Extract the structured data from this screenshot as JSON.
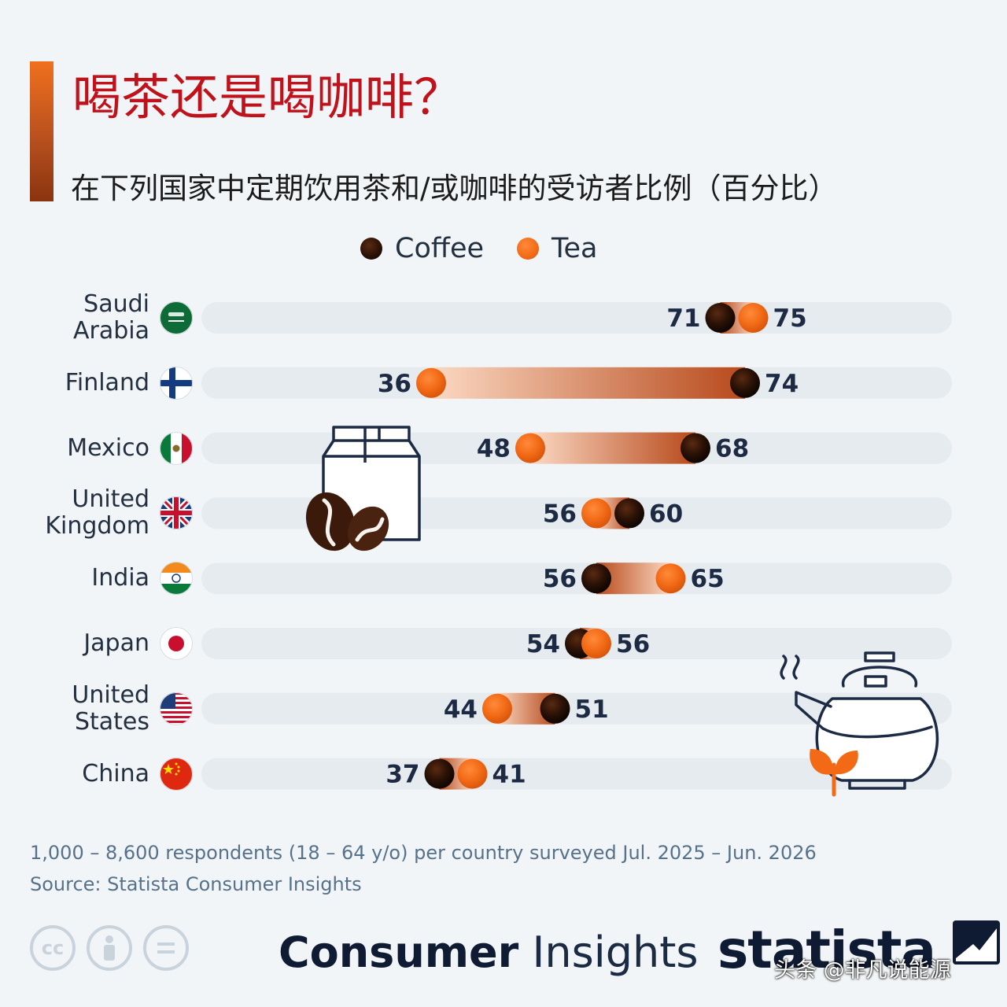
{
  "title": "喝茶还是喝咖啡？",
  "subtitle": "在下列国家中定期饮用茶和/或咖啡的受访者比例（百分比）",
  "legend": {
    "coffee": "Coffee",
    "tea": "Tea"
  },
  "colors": {
    "coffee": "#1a0b04",
    "tea": "#f26a16",
    "track": "#e6ebef",
    "title": "#c0121a"
  },
  "chart_data": {
    "type": "dumbbell",
    "xlim": [
      0,
      100
    ],
    "series": [
      {
        "name": "Coffee",
        "values": [
          71,
          74,
          68,
          60,
          56,
          54,
          51,
          37
        ]
      },
      {
        "name": "Tea",
        "values": [
          75,
          36,
          48,
          56,
          65,
          56,
          44,
          41
        ]
      }
    ],
    "categories": [
      "Saudi\nArabia",
      "Finland",
      "Mexico",
      "United\nKingdom",
      "India",
      "Japan",
      "United\nStates",
      "China"
    ],
    "flags": [
      "saudi-arabia-flag-icon",
      "finland-flag-icon",
      "mexico-flag-icon",
      "uk-flag-icon",
      "india-flag-icon",
      "japan-flag-icon",
      "us-flag-icon",
      "china-flag-icon"
    ],
    "legend_position": "top-center",
    "grid": false
  },
  "footnote": {
    "respondents": "1,000 – 8,600 respondents (18 – 64 y/o) per country surveyed Jul. 2025 – Jun. 2026",
    "source": "Source: Statista Consumer Insights"
  },
  "footer": {
    "brand_bold": "Consumer",
    "brand_light": "Insights",
    "logo": "statista",
    "watermark": "头条 @非凡说能源",
    "cc_icons": [
      "cc-icon",
      "attribution-icon",
      "no-derivatives-icon"
    ]
  },
  "illustrations": [
    "coffee-bag-icon",
    "teapot-icon"
  ]
}
